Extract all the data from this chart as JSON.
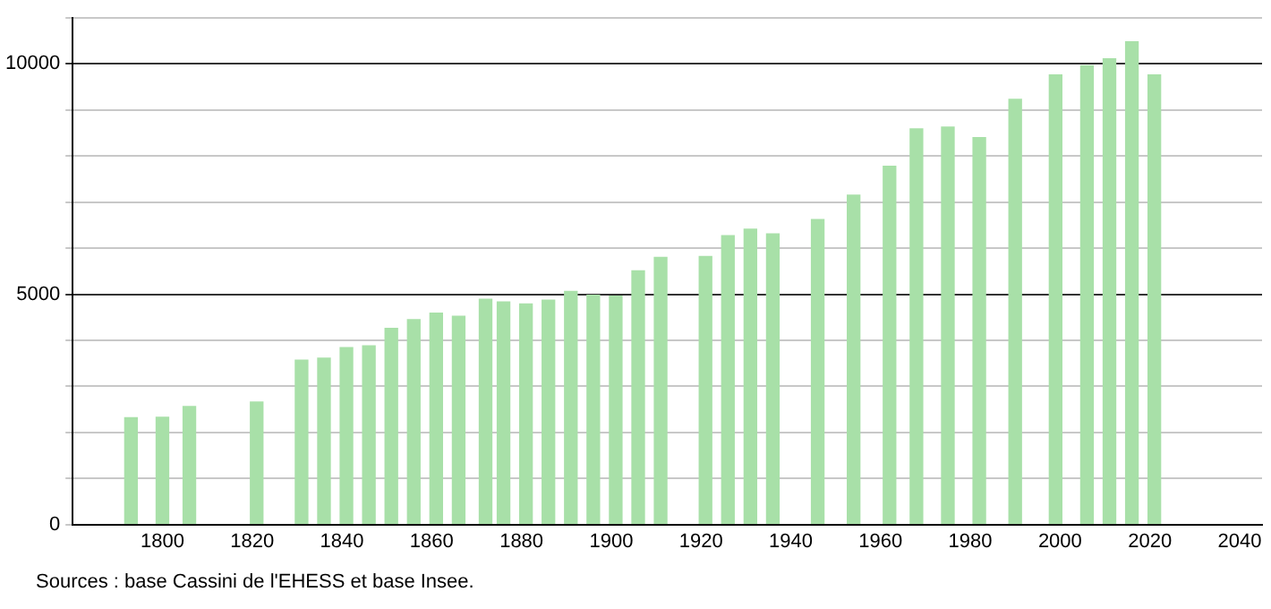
{
  "chart_data": {
    "type": "bar",
    "x": [
      1793,
      1800,
      1806,
      1821,
      1831,
      1836,
      1841,
      1846,
      1851,
      1856,
      1861,
      1866,
      1872,
      1876,
      1881,
      1886,
      1891,
      1896,
      1901,
      1906,
      1911,
      1921,
      1926,
      1931,
      1936,
      1946,
      1954,
      1962,
      1968,
      1975,
      1982,
      1990,
      1999,
      2006,
      2011,
      2016,
      2021
    ],
    "values": [
      2320,
      2330,
      2560,
      2660,
      3570,
      3610,
      3840,
      3880,
      4260,
      4450,
      4590,
      4520,
      4890,
      4830,
      4790,
      4870,
      5060,
      4980,
      4960,
      5510,
      5800,
      5820,
      6270,
      6410,
      6310,
      6620,
      7150,
      7780,
      8590,
      8630,
      8400,
      9230,
      9760,
      9960,
      10110,
      10480,
      9760
    ],
    "color": "#a8e0a8",
    "xlim": [
      1780,
      2045
    ],
    "xticks": [
      1800,
      1820,
      1840,
      1860,
      1880,
      1900,
      1920,
      1940,
      1960,
      1980,
      2000,
      2020,
      2040
    ],
    "ylim": [
      0,
      11000
    ],
    "yticks": [
      0,
      {
        "value": 1000,
        "label": null
      },
      {
        "value": 2000,
        "label": null
      },
      {
        "value": 3000,
        "label": null
      },
      {
        "value": 4000,
        "label": null
      },
      5000,
      {
        "value": 6000,
        "label": null
      },
      {
        "value": 7000,
        "label": null
      },
      {
        "value": 8000,
        "label": null
      },
      {
        "value": 9000,
        "label": null
      },
      10000,
      {
        "value": 11000,
        "label": null
      }
    ],
    "grid": "y",
    "annotations": [
      "Sources : base Cassini de l'EHESS et base Insee."
    ]
  }
}
